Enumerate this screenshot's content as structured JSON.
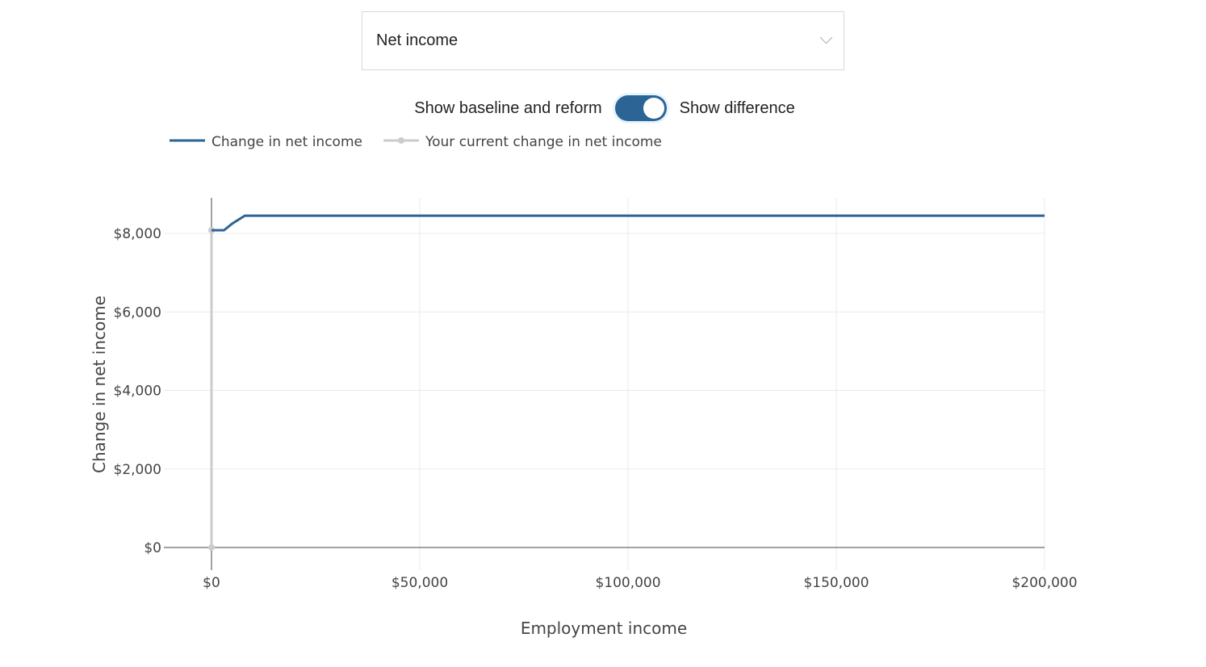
{
  "dropdown": {
    "selected": "Net income"
  },
  "toggle": {
    "left_label": "Show baseline and reform",
    "right_label": "Show difference",
    "state": "on"
  },
  "colors": {
    "main": "#2c6496",
    "current": "#cccccc"
  },
  "chart_data": {
    "type": "line",
    "xlabel": "Employment income",
    "ylabel": "Change in net income",
    "xlim": [
      0,
      200000
    ],
    "ylim": [
      -600,
      9000
    ],
    "xticks": [
      0,
      50000,
      100000,
      150000,
      200000
    ],
    "xtick_labels": [
      "$0",
      "$50,000",
      "$100,000",
      "$150,000",
      "$200,000"
    ],
    "yticks": [
      0,
      2000,
      4000,
      6000,
      8000
    ],
    "ytick_labels": [
      "$0",
      "$2,000",
      "$4,000",
      "$6,000",
      "$8,000"
    ],
    "legend": {
      "position": "top-left",
      "entries": [
        "Change in net income",
        "Your current change in net income"
      ]
    },
    "series": [
      {
        "name": "Change in net income",
        "x": [
          0,
          3000,
          5000,
          8000,
          200000
        ],
        "y": [
          8080,
          8080,
          8250,
          8450,
          8450
        ]
      },
      {
        "name": "Your current change in net income",
        "x": [
          0,
          0
        ],
        "y": [
          0,
          8080
        ]
      }
    ]
  }
}
